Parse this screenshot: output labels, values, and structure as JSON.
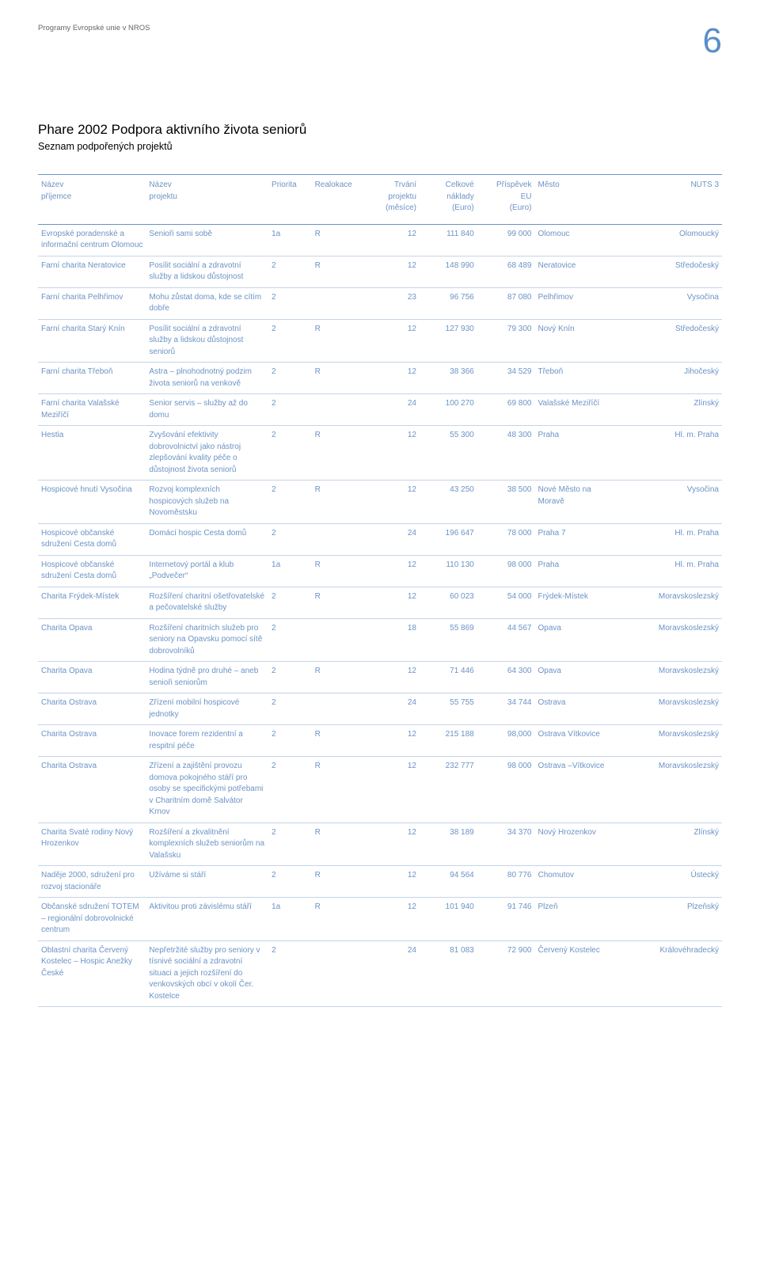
{
  "header": {
    "breadcrumb": "Programy Evropské unie v NROS",
    "page_number": "6"
  },
  "document": {
    "title": "Phare 2002 Podpora aktivního života seniorů",
    "subtitle": "Seznam podpořených projektů"
  },
  "table": {
    "type": "table",
    "colors": {
      "text": "#6b93c6",
      "rule_strong": "#6b93c6",
      "rule_light": "#c5d4e8",
      "background": "#ffffff"
    },
    "fontsize_pt": 10,
    "columns": [
      {
        "key": "recipient",
        "label": "Název\npříjemce",
        "width": "15%",
        "align": "left"
      },
      {
        "key": "project",
        "label": "Název\nprojektu",
        "width": "17%",
        "align": "left"
      },
      {
        "key": "priority",
        "label": "Priorita",
        "width": "6%",
        "align": "left"
      },
      {
        "key": "realloc",
        "label": "Realokace",
        "width": "8%",
        "align": "left"
      },
      {
        "key": "duration",
        "label": "Trvání\nprojektu\n(měsíce)",
        "width": "7%",
        "align": "right"
      },
      {
        "key": "total",
        "label": "Celkové\nnáklady\n(Euro)",
        "width": "8%",
        "align": "right"
      },
      {
        "key": "contrib",
        "label": "Příspěvek\nEU\n(Euro)",
        "width": "8%",
        "align": "right"
      },
      {
        "key": "city",
        "label": "Město",
        "width": "12%",
        "align": "left"
      },
      {
        "key": "nuts",
        "label": "NUTS 3",
        "width": "14%",
        "align": "right"
      }
    ],
    "rows": [
      {
        "recipient": "Evropské poradenské a informační centrum Olomouc",
        "project": "Senioři sami sobě",
        "priority": "1a",
        "realloc": "R",
        "duration": "12",
        "total": "111 840",
        "contrib": "99 000",
        "city": "Olomouc",
        "nuts": "Olomoucký"
      },
      {
        "recipient": "Farní charita Neratovice",
        "project": "Posílit sociální a zdravotní služby a lidskou důstojnost",
        "priority": "2",
        "realloc": "R",
        "duration": "12",
        "total": "148 990",
        "contrib": "68 489",
        "city": "Neratovice",
        "nuts": "Středočeský"
      },
      {
        "recipient": "Farní charita Pelhřimov",
        "project": "Mohu zůstat doma, kde se cítím dobře",
        "priority": "2",
        "realloc": "",
        "duration": "23",
        "total": "96 756",
        "contrib": "87 080",
        "city": "Pelhřimov",
        "nuts": "Vysočina"
      },
      {
        "recipient": "Farní charita Starý Knín",
        "project": "Posílit sociální a zdravotní služby a lidskou důstojnost seniorů",
        "priority": "2",
        "realloc": "R",
        "duration": "12",
        "total": "127 930",
        "contrib": "79 300",
        "city": "Nový Knín",
        "nuts": "Středočeský"
      },
      {
        "recipient": "Farní charita Třeboň",
        "project": "Astra – plnohodnotný podzim života seniorů na venkově",
        "priority": "2",
        "realloc": "R",
        "duration": "12",
        "total": "38 366",
        "contrib": "34 529",
        "city": "Třeboň",
        "nuts": "Jihočeský"
      },
      {
        "recipient": "Farní charita Valašské Meziříčí",
        "project": "Senior servis – služby až do domu",
        "priority": "2",
        "realloc": "",
        "duration": "24",
        "total": "100 270",
        "contrib": "69 800",
        "city": "Valašské Meziříčí",
        "nuts": "Zlínský"
      },
      {
        "recipient": "Hestia",
        "project": "Zvyšování efektivity dobrovolnictví jako nástroj zlepšování kvality péče o důstojnost života seniorů",
        "priority": "2",
        "realloc": "R",
        "duration": "12",
        "total": "55 300",
        "contrib": "48 300",
        "city": "Praha",
        "nuts": "Hl. m. Praha"
      },
      {
        "recipient": "Hospicové hnutí Vysočina",
        "project": "Rozvoj komplexních hospicových služeb na Novoměstsku",
        "priority": "2",
        "realloc": "R",
        "duration": "12",
        "total": "43 250",
        "contrib": "38 500",
        "city": "Nové Město na Moravě",
        "nuts": "Vysočina"
      },
      {
        "recipient": "Hospicové občanské sdružení Cesta domů",
        "project": "Domácí hospic Cesta domů",
        "priority": "2",
        "realloc": "",
        "duration": "24",
        "total": "196 647",
        "contrib": "78 000",
        "city": "Praha 7",
        "nuts": "Hl. m. Praha"
      },
      {
        "recipient": "Hospicové občanské sdružení Cesta domů",
        "project": "Internetový portál a klub „Podvečer“",
        "priority": "1a",
        "realloc": "R",
        "duration": "12",
        "total": "110 130",
        "contrib": "98 000",
        "city": "Praha",
        "nuts": "Hl. m. Praha"
      },
      {
        "recipient": "Charita Frýdek-Místek",
        "project": "Rozšíření charitní ošetřovatelské a pečovatelské služby",
        "priority": "2",
        "realloc": "R",
        "duration": "12",
        "total": "60 023",
        "contrib": "54 000",
        "city": "Frýdek-Místek",
        "nuts": "Moravskoslezský"
      },
      {
        "recipient": "Charita Opava",
        "project": "Rozšíření charitních služeb pro seniory na Opavsku pomocí sítě dobrovolníků",
        "priority": "2",
        "realloc": "",
        "duration": "18",
        "total": "55 869",
        "contrib": "44 567",
        "city": "Opava",
        "nuts": "Moravskoslezský"
      },
      {
        "recipient": "Charita Opava",
        "project": "Hodina týdně pro druhé – aneb senioři seniorům",
        "priority": "2",
        "realloc": "R",
        "duration": "12",
        "total": "71 446",
        "contrib": "64 300",
        "city": "Opava",
        "nuts": "Moravskoslezský"
      },
      {
        "recipient": "Charita Ostrava",
        "project": "Zřízení mobilní hospicové jednotky",
        "priority": "2",
        "realloc": "",
        "duration": "24",
        "total": "55 755",
        "contrib": "34 744",
        "city": "Ostrava",
        "nuts": "Moravskoslezský"
      },
      {
        "recipient": "Charita Ostrava",
        "project": "Inovace forem rezidentní a respitní péče",
        "priority": "2",
        "realloc": "R",
        "duration": "12",
        "total": "215 188",
        "contrib": "98,000",
        "city": "Ostrava Vítkovice",
        "nuts": "Moravskoslezský"
      },
      {
        "recipient": "Charita Ostrava",
        "project": "Zřízení a zajištění provozu domova pokojného stáří pro osoby se specifickými potřebami v Charitním domě Salvátor Krnov",
        "priority": "2",
        "realloc": "R",
        "duration": "12",
        "total": "232 777",
        "contrib": "98 000",
        "city": "Ostrava –Vítkovice",
        "nuts": "Moravskoslezský"
      },
      {
        "recipient": "Charita Svaté rodiny Nový Hrozenkov",
        "project": "Rozšíření a zkvalitnění komplexních služeb seniorům na Valašsku",
        "priority": "2",
        "realloc": "R",
        "duration": "12",
        "total": "38 189",
        "contrib": "34 370",
        "city": "Nový Hrozenkov",
        "nuts": "Zlínský"
      },
      {
        "recipient": "Naděje 2000, sdružení pro rozvoj stacionáře",
        "project": "Užíváme si stáří",
        "priority": "2",
        "realloc": "R",
        "duration": "12",
        "total": "94 564",
        "contrib": "80 776",
        "city": "Chomutov",
        "nuts": "Ústecký"
      },
      {
        "recipient": "Občanské sdružení TOTEM – regionální dobrovolnické centrum",
        "project": "Aktivitou proti závislému stáří",
        "priority": "1a",
        "realloc": "R",
        "duration": "12",
        "total": "101 940",
        "contrib": "91 746",
        "city": "Plzeň",
        "nuts": "Plzeňský"
      },
      {
        "recipient": "Oblastní charita Červený Kostelec – Hospic Anežky České",
        "project": "Nepřetržité služby pro seniory v tísnivé sociální a zdravotní situaci a jejich rozšíření do venkovských obcí v okolí Čer. Kostelce",
        "priority": "2",
        "realloc": "",
        "duration": "24",
        "total": "81 083",
        "contrib": "72 900",
        "city": "Červený Kostelec",
        "nuts": "Královéhradecký"
      }
    ]
  }
}
